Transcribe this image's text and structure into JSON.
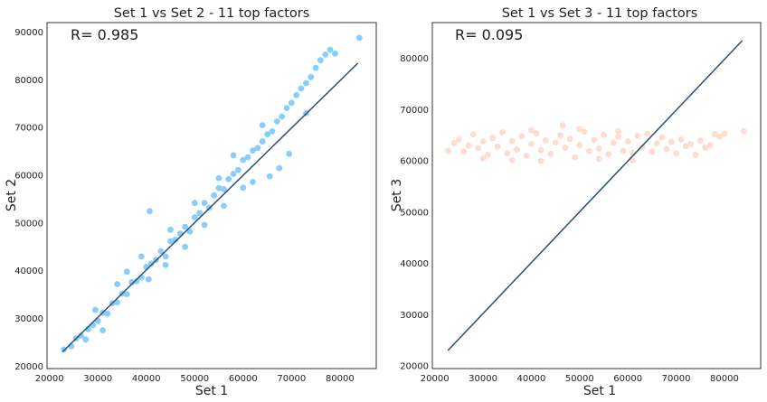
{
  "chart_data": [
    {
      "type": "scatter",
      "title": "Set 1 vs Set 2 - 11 top factors",
      "xlabel": "Set 1",
      "ylabel": "Set 2",
      "annotation": "R= 0.985",
      "xlim": [
        19500,
        87500
      ],
      "ylim": [
        19500,
        92000
      ],
      "xticks": [
        20000,
        30000,
        40000,
        50000,
        60000,
        70000,
        80000
      ],
      "yticks": [
        20000,
        30000,
        40000,
        50000,
        60000,
        70000,
        80000,
        90000
      ],
      "grid": false,
      "point_color": "#87cefa",
      "line_color": "#2f4f6f",
      "fit_line": {
        "x": [
          22700,
          83700
        ],
        "y": [
          23000,
          83500
        ]
      },
      "series": [
        {
          "points": [
            [
              23000,
              23500
            ],
            [
              24500,
              24200
            ],
            [
              25500,
              25800
            ],
            [
              26500,
              26400
            ],
            [
              27500,
              25600
            ],
            [
              28000,
              27800
            ],
            [
              29000,
              28600
            ],
            [
              30000,
              29500
            ],
            [
              31000,
              31200
            ],
            [
              32000,
              31000
            ],
            [
              33000,
              33200
            ],
            [
              34000,
              33400
            ],
            [
              35000,
              35200
            ],
            [
              36000,
              35100
            ],
            [
              37000,
              37600
            ],
            [
              38000,
              37800
            ],
            [
              39000,
              38600
            ],
            [
              40000,
              40800
            ],
            [
              40500,
              38200
            ],
            [
              41000,
              41500
            ],
            [
              42000,
              42300
            ],
            [
              43000,
              44100
            ],
            [
              44000,
              43000
            ],
            [
              45000,
              46200
            ],
            [
              46000,
              46500
            ],
            [
              47000,
              47800
            ],
            [
              48000,
              49200
            ],
            [
              49000,
              48200
            ],
            [
              50000,
              51200
            ],
            [
              51000,
              52100
            ],
            [
              52000,
              54200
            ],
            [
              53000,
              53200
            ],
            [
              54000,
              55800
            ],
            [
              55000,
              57300
            ],
            [
              56000,
              57100
            ],
            [
              57000,
              59200
            ],
            [
              58000,
              60300
            ],
            [
              59000,
              61100
            ],
            [
              60000,
              63200
            ],
            [
              61000,
              63800
            ],
            [
              62000,
              65200
            ],
            [
              63000,
              65700
            ],
            [
              64000,
              67100
            ],
            [
              65000,
              68600
            ],
            [
              66000,
              69200
            ],
            [
              67000,
              71300
            ],
            [
              68000,
              72300
            ],
            [
              69000,
              74100
            ],
            [
              70000,
              75200
            ],
            [
              71000,
              76800
            ],
            [
              72000,
              78200
            ],
            [
              73000,
              79300
            ],
            [
              74000,
              80600
            ],
            [
              75000,
              82500
            ],
            [
              76000,
              84100
            ],
            [
              77000,
              85300
            ],
            [
              78000,
              86300
            ],
            [
              79000,
              85500
            ],
            [
              84000,
              88800
            ],
            [
              40700,
              52500
            ],
            [
              67500,
              61500
            ],
            [
              62000,
              58600
            ],
            [
              65500,
              59800
            ],
            [
              69500,
              64500
            ],
            [
              73000,
              73000
            ],
            [
              36000,
              39800
            ],
            [
              31000,
              27500
            ],
            [
              44000,
              41200
            ],
            [
              48000,
              45000
            ],
            [
              52000,
              49600
            ],
            [
              56000,
              53600
            ],
            [
              60000,
              57400
            ],
            [
              45000,
              48600
            ],
            [
              50000,
              54200
            ],
            [
              55000,
              59400
            ],
            [
              39000,
              43000
            ],
            [
              34000,
              37200
            ],
            [
              29500,
              31800
            ],
            [
              64000,
              70500
            ],
            [
              58000,
              64200
            ]
          ]
        }
      ]
    },
    {
      "type": "scatter",
      "title": "Set 1 vs Set 3 - 11 top factors",
      "xlabel": "Set 1",
      "ylabel": "Set 3",
      "annotation": "R= 0.095",
      "xlim": [
        19500,
        87500
      ],
      "ylim": [
        19500,
        87000
      ],
      "xticks": [
        20000,
        30000,
        40000,
        50000,
        60000,
        70000,
        80000
      ],
      "yticks": [
        20000,
        30000,
        40000,
        50000,
        60000,
        70000,
        80000
      ],
      "grid": false,
      "point_color": "#ffdcd0",
      "line_color": "#2f4f6f",
      "fit_line": {
        "x": [
          22700,
          83700
        ],
        "y": [
          23000,
          83500
        ]
      },
      "series": [
        {
          "points": [
            [
              22800,
              62000
            ],
            [
              24000,
              63500
            ],
            [
              25000,
              64200
            ],
            [
              26000,
              61800
            ],
            [
              27000,
              63000
            ],
            [
              28000,
              65200
            ],
            [
              29000,
              62500
            ],
            [
              30000,
              63800
            ],
            [
              31000,
              61200
            ],
            [
              32000,
              64500
            ],
            [
              33000,
              62800
            ],
            [
              34000,
              65600
            ],
            [
              35000,
              61500
            ],
            [
              36000,
              63900
            ],
            [
              37000,
              62200
            ],
            [
              38000,
              64800
            ],
            [
              39000,
              61000
            ],
            [
              40000,
              63300
            ],
            [
              41000,
              65400
            ],
            [
              42000,
              62100
            ],
            [
              43000,
              64000
            ],
            [
              44000,
              61400
            ],
            [
              45000,
              63600
            ],
            [
              46000,
              65000
            ],
            [
              46500,
              67000
            ],
            [
              47000,
              62600
            ],
            [
              48000,
              64300
            ],
            [
              49000,
              60700
            ],
            [
              50000,
              63100
            ],
            [
              51000,
              65700
            ],
            [
              52000,
              61900
            ],
            [
              53000,
              64100
            ],
            [
              54000,
              62400
            ],
            [
              55000,
              65100
            ],
            [
              56000,
              61300
            ],
            [
              57000,
              63500
            ],
            [
              58000,
              64700
            ],
            [
              59000,
              62000
            ],
            [
              60000,
              63800
            ],
            [
              61000,
              61600
            ],
            [
              62000,
              64900
            ],
            [
              63000,
              62700
            ],
            [
              64000,
              65300
            ],
            [
              65000,
              61800
            ],
            [
              66000,
              63400
            ],
            [
              67000,
              64600
            ],
            [
              68000,
              62300
            ],
            [
              69000,
              63700
            ],
            [
              70000,
              61500
            ],
            [
              71000,
              64200
            ],
            [
              72000,
              62900
            ],
            [
              73000,
              63300
            ],
            [
              74000,
              61200
            ],
            [
              75000,
              64000
            ],
            [
              76000,
              62600
            ],
            [
              77000,
              63100
            ],
            [
              78000,
              65200
            ],
            [
              79000,
              64700
            ],
            [
              80000,
              65300
            ],
            [
              84000,
              65800
            ],
            [
              36000,
              60200
            ],
            [
              42000,
              60000
            ],
            [
              54000,
              60400
            ],
            [
              61000,
              60100
            ],
            [
              40000,
              66000
            ],
            [
              50000,
              66200
            ],
            [
              58000,
              65800
            ],
            [
              30000,
              60500
            ]
          ]
        }
      ]
    }
  ]
}
